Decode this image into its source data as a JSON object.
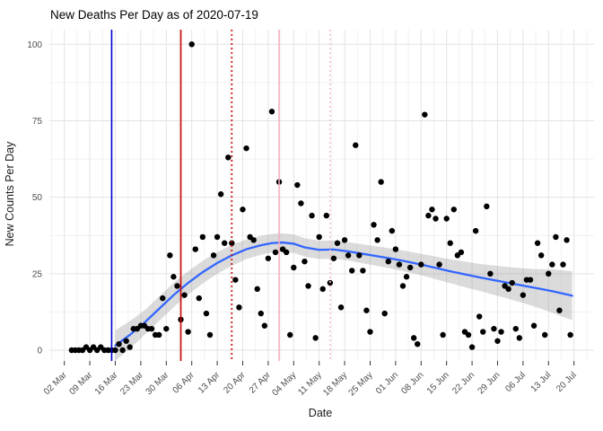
{
  "chart_data": {
    "type": "scatter",
    "title": "New Deaths Per Day as of 2020-07-19",
    "xlabel": "Date",
    "ylabel": "New Counts Per Day",
    "ylim": [
      0,
      100
    ],
    "y_ticks": [
      0,
      25,
      50,
      75,
      100
    ],
    "x_ticks": [
      "02 Mar",
      "09 Mar",
      "16 Mar",
      "23 Mar",
      "30 Mar",
      "06 Apr",
      "13 Apr",
      "20 Apr",
      "27 Apr",
      "04 May",
      "11 May",
      "18 May",
      "25 May",
      "01 Jun",
      "08 Jun",
      "15 Jun",
      "22 Jun",
      "29 Jun",
      "06 Jul",
      "13 Jul",
      "20 Jul"
    ],
    "x_tick_start_date": "2020-03-02",
    "x_tick_interval_days": 7,
    "grid": "on",
    "legend": "none",
    "points": [
      [
        "2020-03-04",
        0
      ],
      [
        "2020-03-05",
        0
      ],
      [
        "2020-03-06",
        0
      ],
      [
        "2020-03-07",
        0
      ],
      [
        "2020-03-08",
        1
      ],
      [
        "2020-03-09",
        0
      ],
      [
        "2020-03-10",
        1
      ],
      [
        "2020-03-11",
        0
      ],
      [
        "2020-03-12",
        1
      ],
      [
        "2020-03-13",
        0
      ],
      [
        "2020-03-14",
        0
      ],
      [
        "2020-03-15",
        0
      ],
      [
        "2020-03-16",
        0
      ],
      [
        "2020-03-17",
        2
      ],
      [
        "2020-03-18",
        0
      ],
      [
        "2020-03-19",
        3
      ],
      [
        "2020-03-20",
        1
      ],
      [
        "2020-03-21",
        7
      ],
      [
        "2020-03-22",
        7
      ],
      [
        "2020-03-23",
        8
      ],
      [
        "2020-03-24",
        8
      ],
      [
        "2020-03-25",
        7
      ],
      [
        "2020-03-26",
        7
      ],
      [
        "2020-03-27",
        5
      ],
      [
        "2020-03-28",
        5
      ],
      [
        "2020-03-29",
        17
      ],
      [
        "2020-03-30",
        7
      ],
      [
        "2020-03-31",
        31
      ],
      [
        "2020-04-01",
        24
      ],
      [
        "2020-04-02",
        21
      ],
      [
        "2020-04-03",
        10
      ],
      [
        "2020-04-04",
        18
      ],
      [
        "2020-04-05",
        6
      ],
      [
        "2020-04-06",
        100
      ],
      [
        "2020-04-07",
        33
      ],
      [
        "2020-04-08",
        17
      ],
      [
        "2020-04-09",
        37
      ],
      [
        "2020-04-10",
        12
      ],
      [
        "2020-04-11",
        5
      ],
      [
        "2020-04-12",
        31
      ],
      [
        "2020-04-13",
        37
      ],
      [
        "2020-04-14",
        51
      ],
      [
        "2020-04-15",
        35
      ],
      [
        "2020-04-16",
        63
      ],
      [
        "2020-04-17",
        35
      ],
      [
        "2020-04-18",
        23
      ],
      [
        "2020-04-19",
        14
      ],
      [
        "2020-04-20",
        46
      ],
      [
        "2020-04-21",
        66
      ],
      [
        "2020-04-22",
        37
      ],
      [
        "2020-04-23",
        36
      ],
      [
        "2020-04-24",
        20
      ],
      [
        "2020-04-25",
        12
      ],
      [
        "2020-04-26",
        8
      ],
      [
        "2020-04-27",
        30
      ],
      [
        "2020-04-28",
        78
      ],
      [
        "2020-04-29",
        32
      ],
      [
        "2020-04-30",
        55
      ],
      [
        "2020-05-01",
        33
      ],
      [
        "2020-05-02",
        32
      ],
      [
        "2020-05-03",
        5
      ],
      [
        "2020-05-04",
        27
      ],
      [
        "2020-05-05",
        54
      ],
      [
        "2020-05-06",
        48
      ],
      [
        "2020-05-07",
        29
      ],
      [
        "2020-05-08",
        21
      ],
      [
        "2020-05-09",
        44
      ],
      [
        "2020-05-10",
        4
      ],
      [
        "2020-05-11",
        37
      ],
      [
        "2020-05-12",
        20
      ],
      [
        "2020-05-13",
        44
      ],
      [
        "2020-05-14",
        22
      ],
      [
        "2020-05-15",
        30
      ],
      [
        "2020-05-16",
        35
      ],
      [
        "2020-05-17",
        14
      ],
      [
        "2020-05-18",
        36
      ],
      [
        "2020-05-19",
        31
      ],
      [
        "2020-05-20",
        26
      ],
      [
        "2020-05-21",
        67
      ],
      [
        "2020-05-22",
        31
      ],
      [
        "2020-05-23",
        26
      ],
      [
        "2020-05-24",
        13
      ],
      [
        "2020-05-25",
        6
      ],
      [
        "2020-05-26",
        41
      ],
      [
        "2020-05-27",
        36
      ],
      [
        "2020-05-28",
        55
      ],
      [
        "2020-05-29",
        12
      ],
      [
        "2020-05-30",
        29
      ],
      [
        "2020-05-31",
        39
      ],
      [
        "2020-06-01",
        33
      ],
      [
        "2020-06-02",
        28
      ],
      [
        "2020-06-03",
        21
      ],
      [
        "2020-06-04",
        24
      ],
      [
        "2020-06-05",
        27
      ],
      [
        "2020-06-06",
        4
      ],
      [
        "2020-06-07",
        2
      ],
      [
        "2020-06-08",
        28
      ],
      [
        "2020-06-09",
        77
      ],
      [
        "2020-06-10",
        44
      ],
      [
        "2020-06-11",
        46
      ],
      [
        "2020-06-12",
        43
      ],
      [
        "2020-06-13",
        28
      ],
      [
        "2020-06-14",
        5
      ],
      [
        "2020-06-15",
        43
      ],
      [
        "2020-06-16",
        35
      ],
      [
        "2020-06-17",
        46
      ],
      [
        "2020-06-18",
        31
      ],
      [
        "2020-06-19",
        32
      ],
      [
        "2020-06-20",
        6
      ],
      [
        "2020-06-21",
        5
      ],
      [
        "2020-06-22",
        1
      ],
      [
        "2020-06-23",
        39
      ],
      [
        "2020-06-24",
        11
      ],
      [
        "2020-06-25",
        6
      ],
      [
        "2020-06-26",
        47
      ],
      [
        "2020-06-27",
        25
      ],
      [
        "2020-06-28",
        7
      ],
      [
        "2020-06-29",
        3
      ],
      [
        "2020-06-30",
        6
      ],
      [
        "2020-07-01",
        21
      ],
      [
        "2020-07-02",
        20
      ],
      [
        "2020-07-03",
        22
      ],
      [
        "2020-07-04",
        7
      ],
      [
        "2020-07-05",
        4
      ],
      [
        "2020-07-06",
        18
      ],
      [
        "2020-07-07",
        23
      ],
      [
        "2020-07-08",
        23
      ],
      [
        "2020-07-09",
        8
      ],
      [
        "2020-07-10",
        35
      ],
      [
        "2020-07-11",
        31
      ],
      [
        "2020-07-12",
        5
      ],
      [
        "2020-07-13",
        25
      ],
      [
        "2020-07-14",
        28
      ],
      [
        "2020-07-15",
        37
      ],
      [
        "2020-07-16",
        13
      ],
      [
        "2020-07-17",
        28
      ],
      [
        "2020-07-18",
        36
      ],
      [
        "2020-07-19",
        5
      ]
    ],
    "smooth": [
      {
        "day": 14,
        "v": 1.5,
        "lo": -3.5,
        "hi": 6.5
      },
      {
        "day": 18,
        "v": 5.0,
        "lo": 0.5,
        "hi": 9.5
      },
      {
        "day": 22,
        "v": 9.0,
        "lo": 5.0,
        "hi": 13.0
      },
      {
        "day": 26,
        "v": 13.5,
        "lo": 9.5,
        "hi": 17.5
      },
      {
        "day": 30,
        "v": 18.0,
        "lo": 14.0,
        "hi": 22.0
      },
      {
        "day": 34,
        "v": 22.0,
        "lo": 18.2,
        "hi": 25.8
      },
      {
        "day": 38,
        "v": 25.5,
        "lo": 21.8,
        "hi": 29.2
      },
      {
        "day": 42,
        "v": 28.5,
        "lo": 25.0,
        "hi": 32.0
      },
      {
        "day": 46,
        "v": 31.0,
        "lo": 27.6,
        "hi": 34.4
      },
      {
        "day": 50,
        "v": 33.0,
        "lo": 29.8,
        "hi": 36.2
      },
      {
        "day": 54,
        "v": 34.3,
        "lo": 31.2,
        "hi": 37.4
      },
      {
        "day": 57,
        "v": 35.0,
        "lo": 32.0,
        "hi": 38.0
      },
      {
        "day": 60,
        "v": 35.2,
        "lo": 32.2,
        "hi": 38.2
      },
      {
        "day": 63,
        "v": 34.8,
        "lo": 31.8,
        "hi": 37.8
      },
      {
        "day": 66,
        "v": 33.6,
        "lo": 30.6,
        "hi": 36.6
      },
      {
        "day": 70,
        "v": 32.8,
        "lo": 29.8,
        "hi": 35.8
      },
      {
        "day": 74,
        "v": 32.9,
        "lo": 29.9,
        "hi": 35.9
      },
      {
        "day": 78,
        "v": 32.3,
        "lo": 29.3,
        "hi": 35.3
      },
      {
        "day": 82,
        "v": 31.5,
        "lo": 28.4,
        "hi": 34.6
      },
      {
        "day": 86,
        "v": 30.7,
        "lo": 27.5,
        "hi": 33.9
      },
      {
        "day": 90,
        "v": 29.9,
        "lo": 26.6,
        "hi": 33.2
      },
      {
        "day": 94,
        "v": 29.0,
        "lo": 25.6,
        "hi": 32.4
      },
      {
        "day": 98,
        "v": 28.0,
        "lo": 24.5,
        "hi": 31.5
      },
      {
        "day": 102,
        "v": 26.9,
        "lo": 23.2,
        "hi": 30.6
      },
      {
        "day": 106,
        "v": 25.8,
        "lo": 21.9,
        "hi": 29.7
      },
      {
        "day": 110,
        "v": 24.8,
        "lo": 20.6,
        "hi": 29.0
      },
      {
        "day": 114,
        "v": 23.8,
        "lo": 19.4,
        "hi": 28.2
      },
      {
        "day": 118,
        "v": 22.9,
        "lo": 18.1,
        "hi": 27.7
      },
      {
        "day": 122,
        "v": 22.0,
        "lo": 16.8,
        "hi": 27.2
      },
      {
        "day": 126,
        "v": 21.1,
        "lo": 15.4,
        "hi": 26.8
      },
      {
        "day": 130,
        "v": 20.2,
        "lo": 13.9,
        "hi": 26.5
      },
      {
        "day": 134,
        "v": 19.3,
        "lo": 12.2,
        "hi": 26.4
      },
      {
        "day": 137,
        "v": 18.5,
        "lo": 10.9,
        "hi": 26.1
      },
      {
        "day": 139.5,
        "v": 17.8,
        "lo": 9.8,
        "hi": 25.8
      }
    ],
    "vlines": [
      {
        "date": "2020-03-15",
        "color": "#0000CC",
        "style": "solid"
      },
      {
        "date": "2020-04-03",
        "color": "#CC0000",
        "style": "solid"
      },
      {
        "date": "2020-04-17",
        "color": "#CC0000",
        "style": "dotted"
      },
      {
        "date": "2020-04-30",
        "color": "#F5AFC0",
        "style": "solid"
      },
      {
        "date": "2020-05-14",
        "color": "#F6BCCA",
        "style": "dotted"
      }
    ],
    "colors": {
      "point": "#000000",
      "smooth_line": "#3366FF",
      "ribbon": "#999999",
      "ribbon_opacity": 0.35,
      "grid_major": "#E3E3E3",
      "grid_minor": "#F1F1F1",
      "tick_text": "#4D4D4D",
      "tick_mark": "#333333"
    }
  }
}
